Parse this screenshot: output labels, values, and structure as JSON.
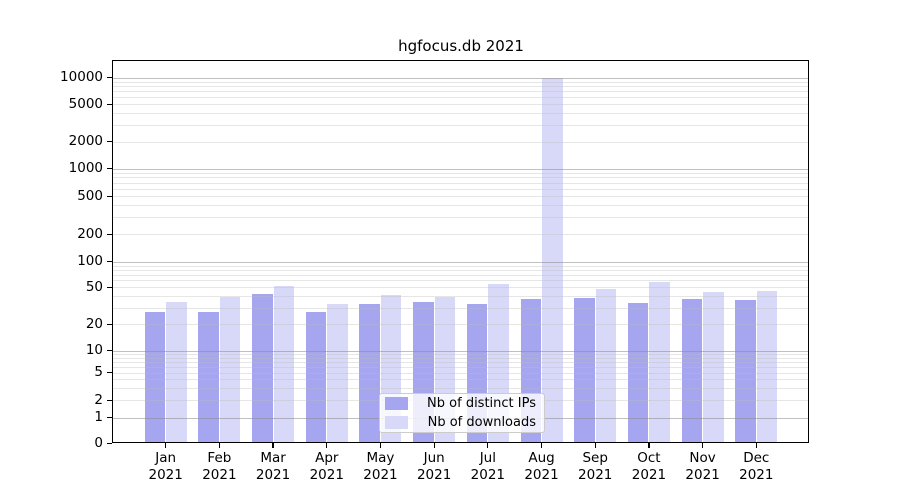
{
  "chart_data": {
    "type": "bar",
    "title": "hgfocus.db 2021",
    "categories": [
      "Jan",
      "Feb",
      "Mar",
      "Apr",
      "May",
      "Jun",
      "Jul",
      "Aug",
      "Sep",
      "Oct",
      "Nov",
      "Dec"
    ],
    "category_sublabel": "2021",
    "series": [
      {
        "name": "Nb of distinct IPs",
        "color": "#a5a5f0",
        "values": [
          27,
          27,
          42,
          27,
          33,
          35,
          33,
          37,
          38,
          34,
          37,
          36
        ]
      },
      {
        "name": "Nb of downloads",
        "color": "#d8d8f8",
        "values": [
          35,
          39,
          52,
          33,
          41,
          39,
          54,
          10000,
          48,
          58,
          44,
          45
        ]
      }
    ],
    "yscale": "symlog",
    "ylim": [
      0,
      15000
    ],
    "yticks": [
      0,
      1,
      2,
      5,
      10,
      20,
      50,
      100,
      200,
      500,
      1000,
      2000,
      5000,
      10000
    ],
    "grid": true,
    "grid_major_values": [
      1,
      10,
      100,
      1000,
      10000
    ],
    "legend_position": "lower center",
    "xlabel": "",
    "ylabel": ""
  }
}
